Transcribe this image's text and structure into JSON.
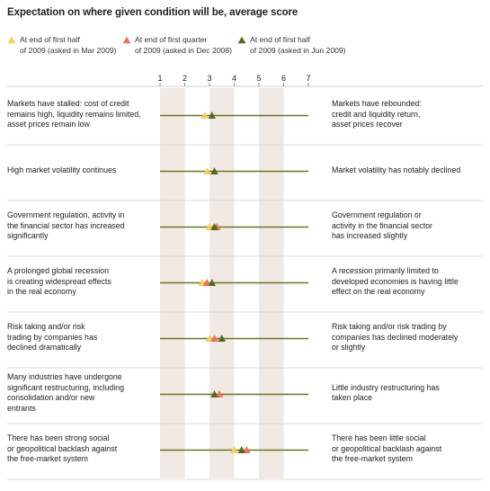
{
  "chart_data": {
    "type": "scatter",
    "title": "Expectation on where given condition will be, average score",
    "scale": {
      "min": 1,
      "max": 7,
      "ticks": [
        1,
        2,
        3,
        4,
        5,
        6,
        7
      ],
      "shaded_bands": [
        [
          1,
          2
        ],
        [
          3,
          4
        ],
        [
          5,
          6
        ]
      ]
    },
    "legend": [
      {
        "name_lines": [
          "At end of first half",
          "of 2009 (asked in Mar 2009)"
        ],
        "color": "#F5D060"
      },
      {
        "name_lines": [
          "At end of first quarter",
          "of 2009 (asked in Dec 2008)"
        ],
        "color": "#EE7260"
      },
      {
        "name_lines": [
          "At end of first half",
          "of 2009 (asked in Jun 2009)"
        ],
        "color": "#5A6A1E"
      }
    ],
    "rows": [
      {
        "left": [
          "Markets have stalled: cost of credit",
          "remains high, liquidity remains limited,",
          "asset prices remain low"
        ],
        "right": [
          "Markets have rebounded:",
          "credit and liquidity return,",
          "asset prices recover"
        ],
        "values": [
          2.8,
          null,
          3.1
        ]
      },
      {
        "left": [
          "High market volatility continues"
        ],
        "right": [
          "Market volatility has notably declined"
        ],
        "values": [
          2.9,
          null,
          3.2
        ]
      },
      {
        "left": [
          "Government regulation, activity in",
          "the financial sector has increased",
          "significantly"
        ],
        "right": [
          "Government regulation or",
          "activity in the financial sector",
          "has increased slightly"
        ],
        "values": [
          3.0,
          3.3,
          3.2
        ]
      },
      {
        "left": [
          "A prolonged global recession",
          "is creating widespread effects",
          "in the real economy"
        ],
        "right": [
          "A recession primarily limited to",
          "developed economies is having little",
          "effect on the real economy"
        ],
        "values": [
          2.7,
          2.9,
          3.1
        ]
      },
      {
        "left": [
          "Risk taking and/or risk",
          "trading by companies has",
          "declined dramatically"
        ],
        "right": [
          "Risk taking and/or risk trading by",
          "companies has declined moderately",
          "or slightly"
        ],
        "values": [
          3.0,
          3.2,
          3.5
        ]
      },
      {
        "left": [
          "Many industries have undergone",
          "significant restructuring, including",
          "consolidation and/or new",
          "entrants"
        ],
        "right": [
          "Little industry restructuring has",
          "taken place"
        ],
        "values": [
          null,
          3.4,
          3.2
        ]
      },
      {
        "left": [
          "There has been strong social",
          "or geopolitical backlash against",
          "the free-market system"
        ],
        "right": [
          "There has been little social",
          "or geopolitical backlash against",
          "the free-market system"
        ],
        "values": [
          4.0,
          4.5,
          4.3
        ]
      }
    ]
  }
}
